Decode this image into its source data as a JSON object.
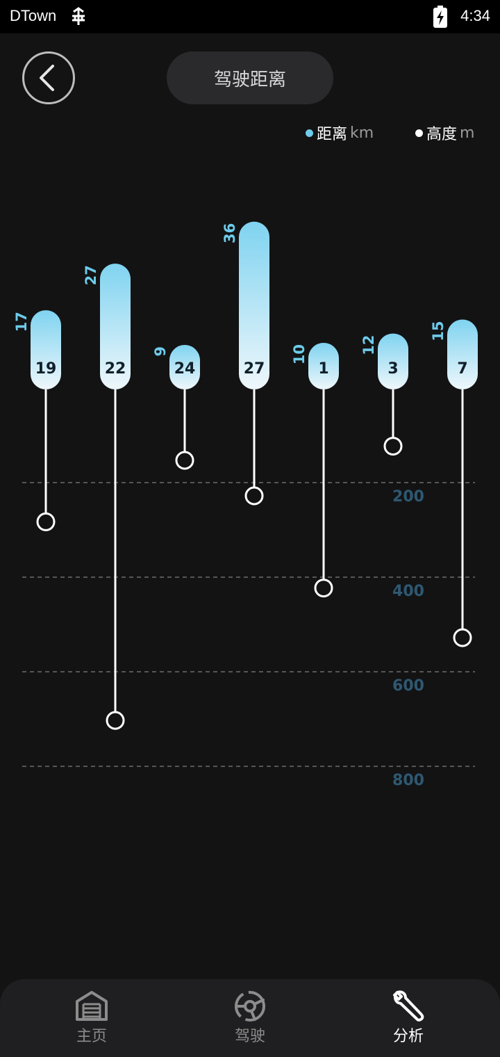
{
  "status": {
    "app": "DTown",
    "time": "4:34"
  },
  "header": {
    "title": "驾驶距离"
  },
  "legend": {
    "distance": {
      "label": "距离",
      "unit": "km"
    },
    "height": {
      "label": "高度",
      "unit": "m"
    }
  },
  "chart_data": {
    "type": "bar",
    "categories": [
      "19",
      "22",
      "24",
      "27",
      "1",
      "3",
      "7"
    ],
    "series": [
      {
        "name": "距离 km",
        "values": [
          17,
          27,
          9,
          36,
          10,
          12,
          15
        ]
      },
      {
        "name": "高度 m",
        "values": [
          280,
          700,
          150,
          225,
          420,
          120,
          525
        ]
      }
    ],
    "y_ticks": [
      "200",
      "400",
      "600",
      "800"
    ],
    "height_axis": {
      "range": [
        0,
        800
      ],
      "ticks": [
        200,
        400,
        600,
        800
      ],
      "direction": "down"
    },
    "distance_axis": {
      "range": [
        0,
        36
      ]
    },
    "colors": {
      "bar_top": "#7fd3f0",
      "bar_bottom": "#eef7fb",
      "stem": "#ffffff",
      "value_label": "#6ecbea",
      "tick_label": "#2e5871"
    },
    "grid": true,
    "legend_position": "top-right"
  },
  "nav": {
    "items": [
      {
        "label": "主页",
        "icon": "garage-icon",
        "active": false
      },
      {
        "label": "驾驶",
        "icon": "steering-wheel-icon",
        "active": false
      },
      {
        "label": "分析",
        "icon": "wrench-icon",
        "active": true
      }
    ]
  }
}
